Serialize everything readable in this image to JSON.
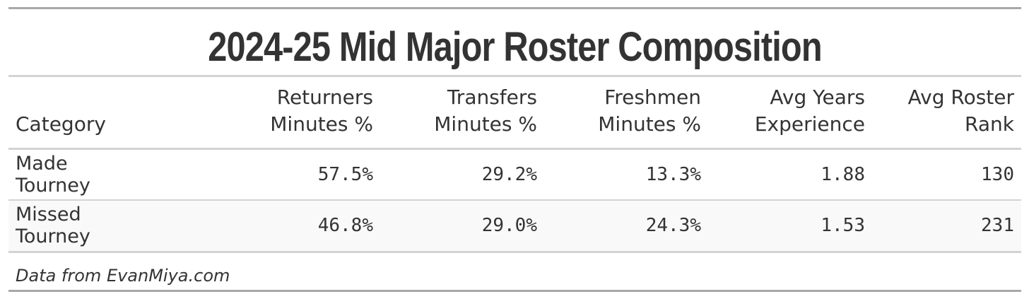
{
  "chart_data": {
    "type": "table",
    "title": "2024-25 Mid Major Roster Composition",
    "columns": [
      [
        "Category"
      ],
      [
        "Returners",
        "Minutes %"
      ],
      [
        "Transfers",
        "Minutes %"
      ],
      [
        "Freshmen",
        "Minutes %"
      ],
      [
        "Avg Years",
        "Experience"
      ],
      [
        "Avg Roster",
        "Rank"
      ]
    ],
    "rows": [
      [
        "Made Tourney",
        "57.5%",
        "29.2%",
        "13.3%",
        "1.88",
        "130"
      ],
      [
        "Missed Tourney",
        "46.8%",
        "29.0%",
        "24.3%",
        "1.53",
        "231"
      ]
    ],
    "source_note": "Data from EvanMiya.com"
  }
}
